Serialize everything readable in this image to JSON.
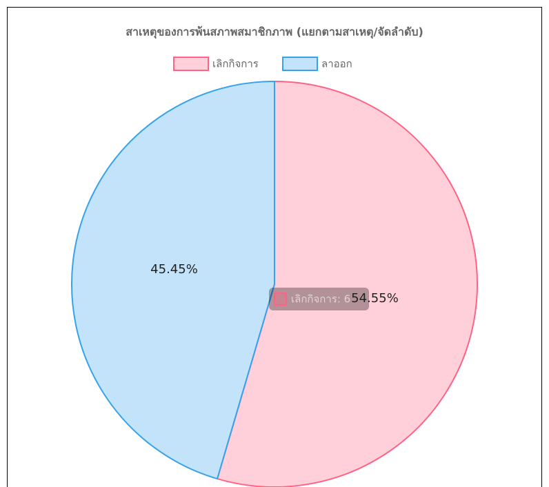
{
  "chart_data": {
    "type": "pie",
    "title": "สาเหตุของการพ้นสภาพสมาชิกภาพ (แยกตามสาเหตุ/จัดลำดับ)",
    "categories": [
      "เลิกกิจการ",
      "ลาออก"
    ],
    "values": [
      54.55,
      45.45
    ],
    "value_labels": [
      "54.55%",
      "45.45%"
    ],
    "colors": [
      "#ff6384",
      "#36a2eb"
    ],
    "legend": "top",
    "tooltip": "เลิกกิจการ: 6"
  }
}
